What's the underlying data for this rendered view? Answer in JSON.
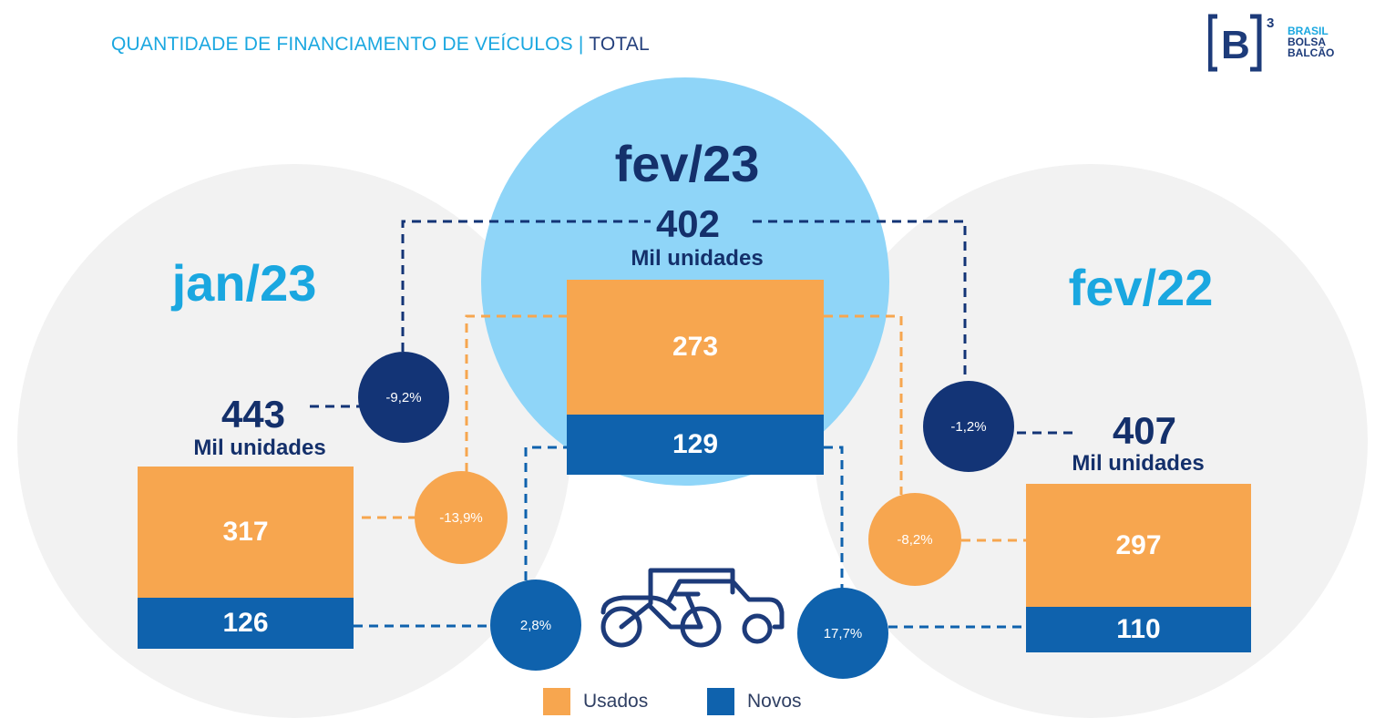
{
  "header": {
    "title_main": "QUANTIDADE DE FINANCIAMENTO DE VEÍCULOS",
    "title_separator": "|",
    "title_suffix": "TOTAL"
  },
  "logo": {
    "lines": [
      "BRASIL",
      "BOLSA",
      "BALCÃO"
    ],
    "superscript": "3"
  },
  "colors": {
    "usados": "#f7a64f",
    "novos": "#0f62ad",
    "total_badge": "#133476",
    "title_accent": "#1aa7e0",
    "dark_text": "#14306b",
    "hero_circle": "#8fd5f8",
    "side_circle": "#f2f2f2"
  },
  "chart_data": {
    "type": "bar",
    "unit": "Mil unidades",
    "periods": [
      {
        "label": "jan/23",
        "total": 443,
        "total_unit": "Mil unidades",
        "usados": 317,
        "novos": 126
      },
      {
        "label": "fev/23",
        "total": 402,
        "total_unit": "Mil unidades",
        "usados": 273,
        "novos": 129
      },
      {
        "label": "fev/22",
        "total": 407,
        "total_unit": "Mil unidades",
        "usados": 297,
        "novos": 110
      }
    ],
    "comparisons": {
      "vs_jan23": {
        "total": "-9,2%",
        "usados": "-13,9%",
        "novos": "2,8%"
      },
      "vs_fev22": {
        "total": "-1,2%",
        "usados": "-8,2%",
        "novos": "17,7%"
      }
    },
    "series": [
      {
        "name": "Usados",
        "color": "#f7a64f"
      },
      {
        "name": "Novos",
        "color": "#0f62ad"
      }
    ]
  },
  "illustration": {
    "icon": "vehicles-icon"
  }
}
